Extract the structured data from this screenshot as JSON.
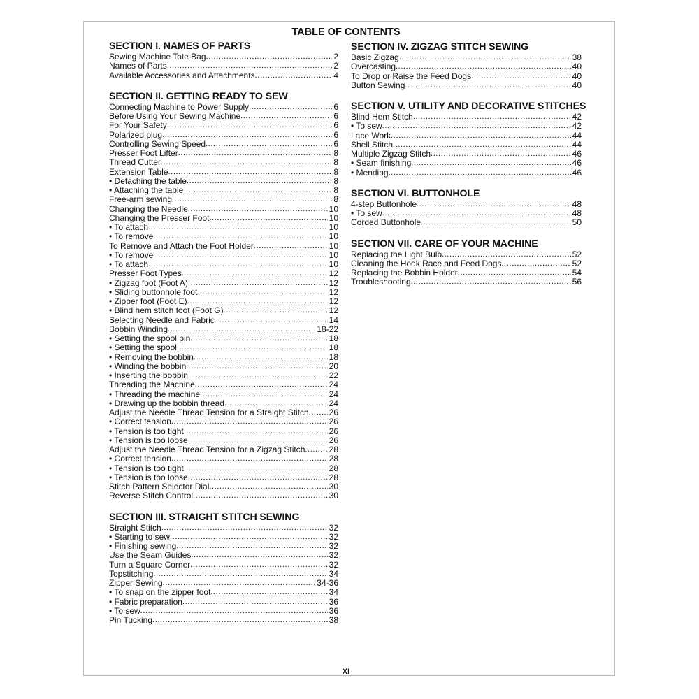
{
  "title": "TABLE OF CONTENTS",
  "left_sections": [
    {
      "title": "SECTION I. NAMES OF PARTS",
      "items": [
        {
          "label": "Sewing Machine Tote Bag",
          "page": "2"
        },
        {
          "label": "Names of Parts",
          "page": "2"
        },
        {
          "label": "Available Accessories and Attachments",
          "page": "4"
        }
      ]
    },
    {
      "title": "SECTION II. GETTING READY TO SEW",
      "items": [
        {
          "label": "Connecting Machine to Power Supply",
          "page": "6"
        },
        {
          "label": "Before Using Your Sewing Machine",
          "page": "6"
        },
        {
          "label": "For Your Safety",
          "page": "6"
        },
        {
          "label": "Polarized plug",
          "page": "6"
        },
        {
          "label": "Controlling Sewing Speed",
          "page": "6"
        },
        {
          "label": "Presser Foot Lifter",
          "page": "8"
        },
        {
          "label": "Thread Cutter",
          "page": "8"
        },
        {
          "label": "Extension Table",
          "page": "8"
        },
        {
          "label": "• Detaching the table",
          "page": "8"
        },
        {
          "label": "• Attaching the table",
          "page": "8"
        },
        {
          "label": "Free-arm sewing",
          "page": "8"
        },
        {
          "label": "Changing the Needle",
          "page": "10"
        },
        {
          "label": "Changing the Presser Foot",
          "page": "10"
        },
        {
          "label": "• To attach",
          "page": "10"
        },
        {
          "label": "• To remove",
          "page": "10"
        },
        {
          "label": "To Remove and Attach the Foot Holder",
          "page": "10"
        },
        {
          "label": "• To remove",
          "page": "10"
        },
        {
          "label": "• To attach",
          "page": "10"
        },
        {
          "label": "Presser Foot Types",
          "page": "12"
        },
        {
          "label": "• Zigzag foot (Foot A)",
          "page": "12"
        },
        {
          "label": "• Sliding buttonhole foot",
          "page": "12"
        },
        {
          "label": "• Zipper foot (Foot E)",
          "page": "12"
        },
        {
          "label": "• Blind hem stitch foot (Foot G)",
          "page": "12"
        },
        {
          "label": "Selecting Needle and Fabric",
          "page": "14"
        },
        {
          "label": "Bobbin Winding",
          "page": "18-22"
        },
        {
          "label": "• Setting the spool pin",
          "page": "18"
        },
        {
          "label": "• Setting the spool",
          "page": "18"
        },
        {
          "label": "• Removing the bobbin",
          "page": "18"
        },
        {
          "label": "• Winding the bobbin",
          "page": "20"
        },
        {
          "label": "• Inserting the bobbin",
          "page": "22"
        },
        {
          "label": "Threading the Machine",
          "page": "24"
        },
        {
          "label": "• Threading the machine",
          "page": "24"
        },
        {
          "label": "• Drawing up the bobbin thread",
          "page": "24"
        },
        {
          "label": "Adjust the Needle Thread Tension for a Straight Stitch",
          "page": "26"
        },
        {
          "label": "• Correct tension",
          "page": "26"
        },
        {
          "label": "• Tension is too tight",
          "page": "26"
        },
        {
          "label": "• Tension is too loose",
          "page": "26"
        },
        {
          "label": "Adjust the Needle Thread Tension for a Zigzag Stitch",
          "page": "28"
        },
        {
          "label": "• Correct tension",
          "page": "28"
        },
        {
          "label": "• Tension is too tight",
          "page": "28"
        },
        {
          "label": "• Tension is too loose",
          "page": "28"
        },
        {
          "label": "Stitch Pattern Selector Dial",
          "page": "30"
        },
        {
          "label": "Reverse Stitch Control",
          "page": "30"
        }
      ]
    },
    {
      "title": "SECTION III. STRAIGHT STITCH SEWING",
      "items": [
        {
          "label": "Straight Stitch",
          "page": "32"
        },
        {
          "label": "• Starting to sew",
          "page": "32"
        },
        {
          "label": "• Finishing sewing",
          "page": "32"
        },
        {
          "label": "Use the Seam Guides",
          "page": "32"
        },
        {
          "label": "Turn a Square Corner",
          "page": "32"
        },
        {
          "label": "Topstitching",
          "page": "34"
        },
        {
          "label": "Zipper Sewing",
          "page": "34-36"
        },
        {
          "label": "• To snap on the zipper foot",
          "page": "34"
        },
        {
          "label": "• Fabric preparation",
          "page": "36"
        },
        {
          "label": "• To sew",
          "page": "36"
        },
        {
          "label": "Pin Tucking",
          "page": "38"
        }
      ]
    }
  ],
  "right_sections": [
    {
      "title": "SECTION IV. ZIGZAG STITCH SEWING",
      "items": [
        {
          "label": "Basic Zigzag",
          "page": "38"
        },
        {
          "label": "Overcasting",
          "page": "40"
        },
        {
          "label": "To Drop or Raise the Feed Dogs",
          "page": "40"
        },
        {
          "label": "Button Sewing",
          "page": "40"
        }
      ]
    },
    {
      "title": "SECTION V. UTILITY AND DECORATIVE STITCHES",
      "items": [
        {
          "label": "Blind Hem Stitch",
          "page": "42"
        },
        {
          "label": "• To sew",
          "page": "42"
        },
        {
          "label": "Lace Work",
          "page": "44"
        },
        {
          "label": "Shell Stitch",
          "page": "44"
        },
        {
          "label": "Multiple Zigzag Stitch",
          "page": "46"
        },
        {
          "label": "• Seam finishing",
          "page": "46"
        },
        {
          "label": "• Mending",
          "page": "46"
        }
      ]
    },
    {
      "title": "SECTION VI. BUTTONHOLE",
      "items": [
        {
          "label": "4-step Buttonhole",
          "page": "48"
        },
        {
          "label": "• To sew",
          "page": "48"
        },
        {
          "label": "Corded Buttonhole",
          "page": "50"
        }
      ]
    },
    {
      "title": "SECTION VII. CARE OF YOUR MACHINE",
      "items": [
        {
          "label": "Replacing the Light Bulb",
          "page": "52"
        },
        {
          "label": "Cleaning the Hook Race and Feed Dogs",
          "page": "52"
        },
        {
          "label": "Replacing the Bobbin Holder",
          "page": "54"
        },
        {
          "label": "Troubleshooting",
          "page": "56"
        }
      ]
    }
  ],
  "page_number": "XI"
}
